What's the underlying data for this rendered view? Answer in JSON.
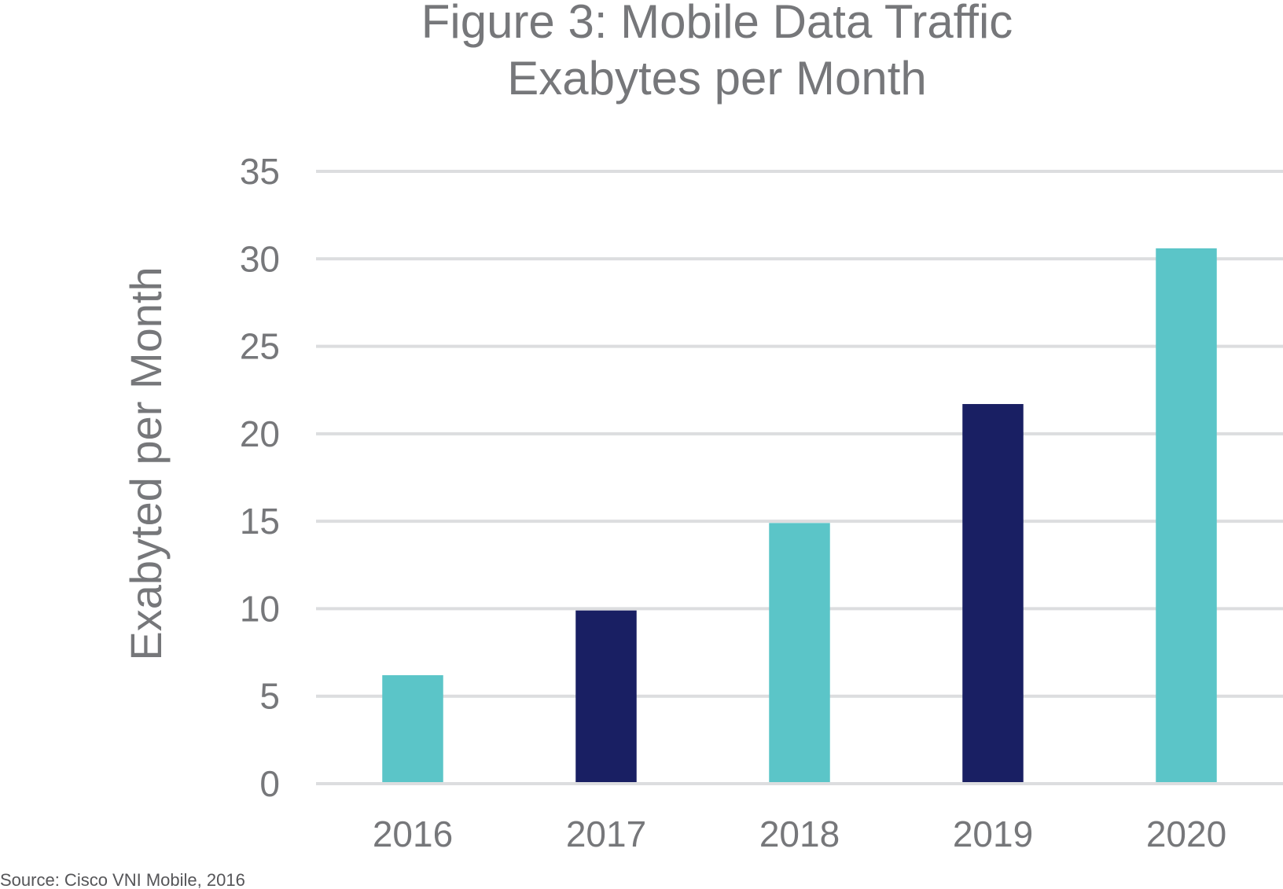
{
  "chart_data": {
    "type": "bar",
    "title": "Figure 3:  Mobile Data Traffic",
    "subtitle": "Exabytes per Month",
    "xlabel": "",
    "ylabel": "Exabyted per Month",
    "categories": [
      "2016",
      "2017",
      "2018",
      "2019",
      "2020"
    ],
    "values": [
      6.2,
      9.9,
      14.9,
      21.7,
      30.6
    ],
    "bar_colors": [
      "#5bc5c8",
      "#191f63",
      "#5bc5c8",
      "#191f63",
      "#5bc5c8"
    ],
    "ylim": [
      0,
      35
    ],
    "yticks": [
      0,
      5,
      10,
      15,
      20,
      25,
      30,
      35
    ],
    "grid": true,
    "gridline_color": "#dcdddf",
    "legend": "none",
    "source": "Source:  Cisco VNI Mobile, 2016"
  }
}
